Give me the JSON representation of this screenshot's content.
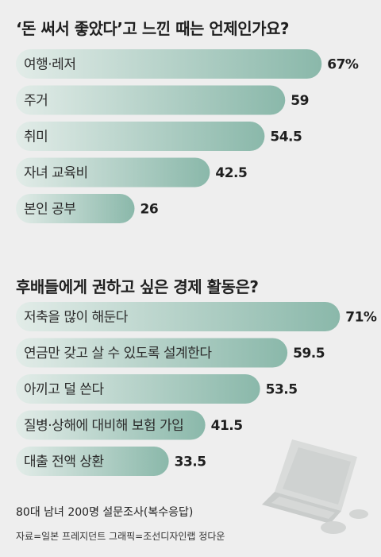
{
  "chart_data": [
    {
      "type": "bar",
      "orientation": "horizontal",
      "title": "‘돈 써서 좋았다’고 느낀 때는 언제인가요?",
      "categories": [
        "여행·레저",
        "주거",
        "취미",
        "자녀 교육비",
        "본인 공부"
      ],
      "values": [
        67,
        59,
        54.5,
        42.5,
        26
      ],
      "value_labels": [
        "67%",
        "59",
        "54.5",
        "42.5",
        "26"
      ]
    },
    {
      "type": "bar",
      "orientation": "horizontal",
      "title": "후배들에게 권하고 싶은 경제 활동은?",
      "categories": [
        "저축을 많이 해둔다",
        "연금만 갖고 살 수 있도록 설계한다",
        "아끼고 덜 쓴다",
        "질병·상해에 대비해 보험 가입",
        "대출 전액 상환"
      ],
      "values": [
        71,
        59.5,
        53.5,
        41.5,
        33.5
      ],
      "value_labels": [
        "71%",
        "59.5",
        "53.5",
        "41.5",
        "33.5"
      ]
    }
  ],
  "colors": {
    "background": "#eeeeee",
    "bar_dark": "#8ab8aa",
    "bar_light": "#e2ece8"
  },
  "illustration": "laptop-icon",
  "footer": {
    "survey": "80대 남녀 200명 설문조사(복수응답)",
    "credit": "자료=일본 프레지던트  그래픽=조선디자인랩 정다운"
  }
}
